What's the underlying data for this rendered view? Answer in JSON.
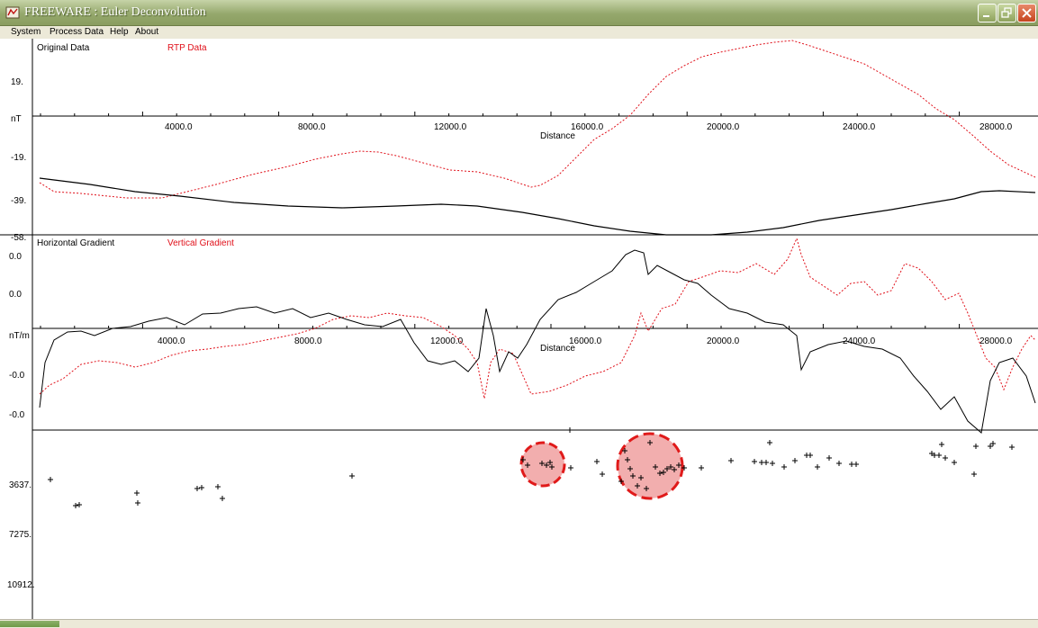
{
  "window": {
    "title": "FREEWARE : Euler Deconvolution",
    "controls": {
      "minimize": "minimize",
      "maximize": "maximize",
      "close": "close"
    }
  },
  "menu": [
    "System",
    "Process Data",
    "Help",
    "About"
  ],
  "panels": {
    "top": {
      "legend_black": "Original Data",
      "legend_red": "RTP Data",
      "ylabel": "nT",
      "y_ticks": [
        "19.",
        "-19.",
        "-39.",
        "-58."
      ],
      "x_ticks": [
        "4000.0",
        "8000.0",
        "12000.0",
        "16000.0",
        "20000.0",
        "24000.0",
        "28000.0"
      ],
      "xlabel": "Distance"
    },
    "middle": {
      "legend_black": "Horizontal Gradient",
      "legend_red": "Vertical Gradient",
      "ylabel": "nT/m",
      "y_ticks": [
        "0.0",
        "0.0",
        "-0.0",
        "-0.0"
      ],
      "x_ticks": [
        "4000.0",
        "8000.0",
        "12000.0",
        "16000.0",
        "20000.0",
        "24000.0",
        "28000.0"
      ],
      "xlabel": "Distance"
    },
    "bottom": {
      "y_ticks": [
        "3637.",
        "7275.",
        "10912."
      ]
    }
  },
  "colors": {
    "black_series": "#000000",
    "red_series": "#e0101a",
    "highlight": "#e01a1a"
  }
}
